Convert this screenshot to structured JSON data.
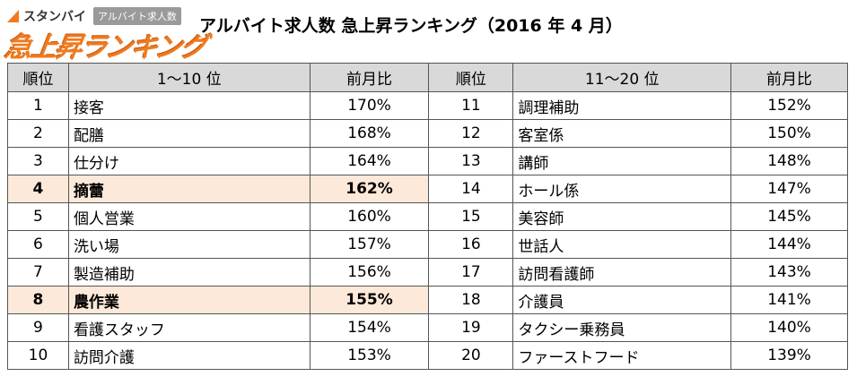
{
  "header": {
    "brand": "スタンバイ",
    "badge": "アルバイト求人数",
    "logo_title": "急上昇ランキング",
    "title": "アルバイト求人数 急上昇ランキング（2016 年 4 月）"
  },
  "table": {
    "columns": [
      "順位",
      "1～10 位",
      "前月比",
      "順位",
      "11～20 位",
      "前月比"
    ],
    "highlighted_ranks": [
      "4",
      "8"
    ],
    "rows": [
      [
        "1",
        "接客",
        "170%",
        "11",
        "調理補助",
        "152%"
      ],
      [
        "2",
        "配膳",
        "168%",
        "12",
        "客室係",
        "150%"
      ],
      [
        "3",
        "仕分け",
        "164%",
        "13",
        "講師",
        "148%"
      ],
      [
        "4",
        "摘蕾",
        "162%",
        "14",
        "ホール係",
        "147%"
      ],
      [
        "5",
        "個人営業",
        "160%",
        "15",
        "美容師",
        "145%"
      ],
      [
        "6",
        "洗い場",
        "157%",
        "16",
        "世話人",
        "144%"
      ],
      [
        "7",
        "製造補助",
        "156%",
        "17",
        "訪問看護師",
        "143%"
      ],
      [
        "8",
        "農作業",
        "155%",
        "18",
        "介護員",
        "141%"
      ],
      [
        "9",
        "看護スタッフ",
        "154%",
        "19",
        "タクシー乗務員",
        "140%"
      ],
      [
        "10",
        "訪問介護",
        "153%",
        "20",
        "ファーストフード",
        "139%"
      ]
    ]
  }
}
